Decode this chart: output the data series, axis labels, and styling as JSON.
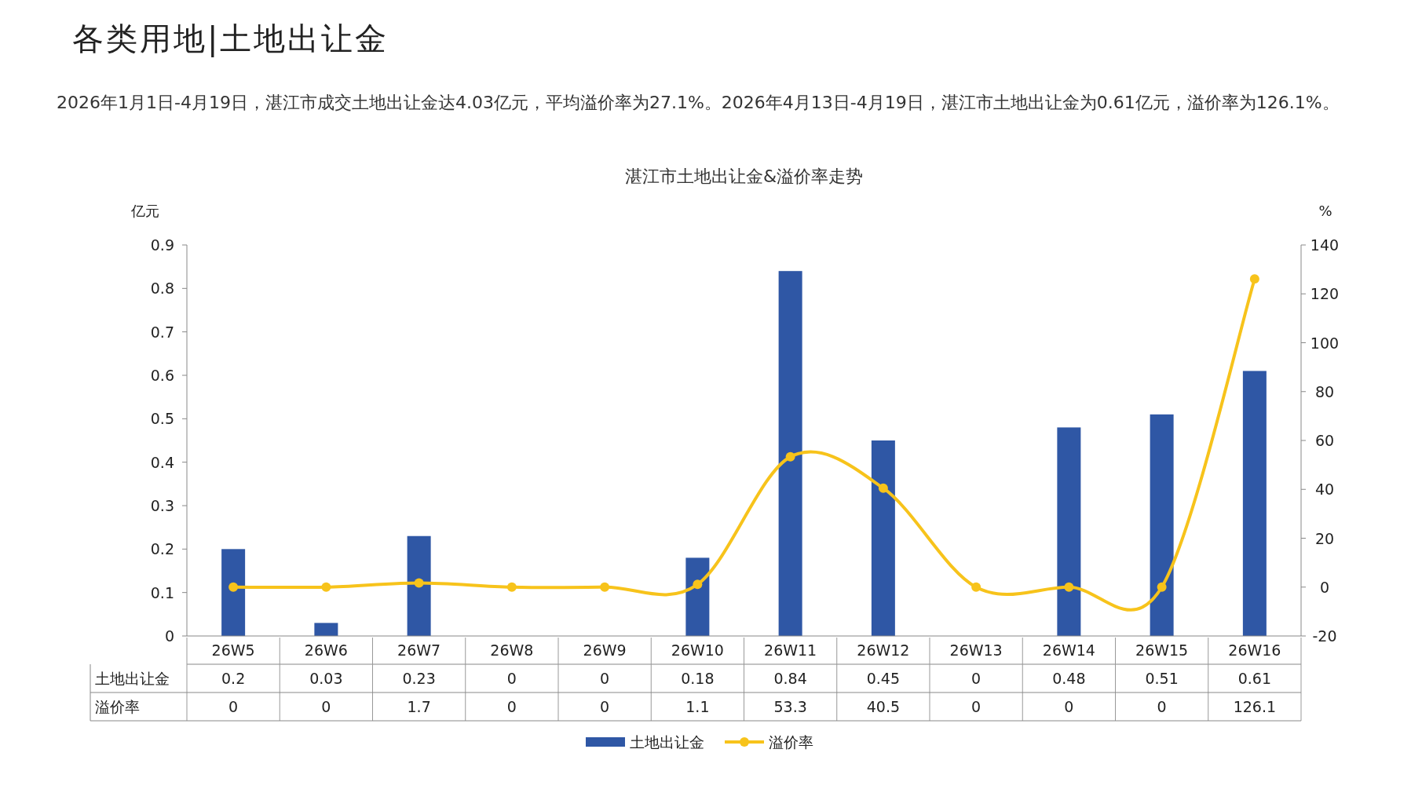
{
  "chart_data": {
    "type": "bar",
    "title": "湛江市土地出让金&溢价率走势",
    "annotations": [
      "各类用地|土地出让金",
      "2026年1月1日-4月19日，湛江市成交土地出让金达4.03亿元，平均溢价率为27.1%。2026年4月13日-4月19日，湛江市土地出让金为0.61亿元，溢价率为126.1%。"
    ],
    "categories": [
      "26W5",
      "26W6",
      "26W7",
      "26W8",
      "26W9",
      "26W10",
      "26W11",
      "26W12",
      "26W13",
      "26W14",
      "26W15",
      "26W16"
    ],
    "series": [
      {
        "name": "土地出让金",
        "color": "#2f57a5",
        "values": [
          0.2,
          0.03,
          0.23,
          0,
          0,
          0.18,
          0.84,
          0.45,
          0,
          0.48,
          0.51,
          0.61
        ]
      },
      {
        "name": "溢价率",
        "type": "line",
        "axis": "y2",
        "color": "#f7c31b",
        "marker": "circle",
        "values": [
          0,
          0,
          1.7,
          0,
          0,
          1.1,
          53.3,
          40.5,
          0,
          0,
          0,
          126.1
        ]
      }
    ],
    "ylabel": "亿元",
    "y2label": "%",
    "ylim": [
      0,
      0.9
    ],
    "yticks": [
      0,
      0.1,
      0.2,
      0.3,
      0.4,
      0.5,
      0.6,
      0.7,
      0.8,
      0.9
    ],
    "y2lim": [
      -20,
      140
    ],
    "y2ticks": [
      -20,
      0,
      20,
      40,
      60,
      80,
      100,
      120,
      140
    ],
    "data_labels": true,
    "legend": "bottom",
    "grid": false
  }
}
